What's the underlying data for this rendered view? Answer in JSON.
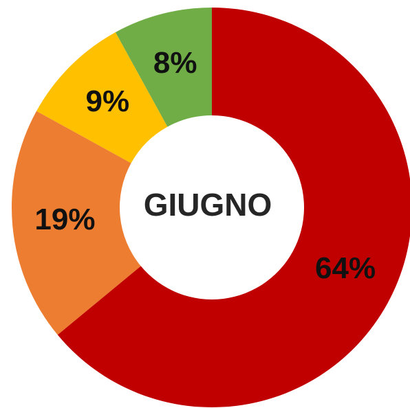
{
  "chart_data": {
    "type": "donut",
    "title": "GIUGNO",
    "categories": [
      "64%",
      "19%",
      "9%",
      "8%"
    ],
    "values": [
      64,
      19,
      9,
      8
    ],
    "value_labels": [
      "64%",
      "19%",
      "9%",
      "8%"
    ],
    "colors": [
      "#c00000",
      "#ed7d31",
      "#ffc000",
      "#70ad47"
    ]
  }
}
